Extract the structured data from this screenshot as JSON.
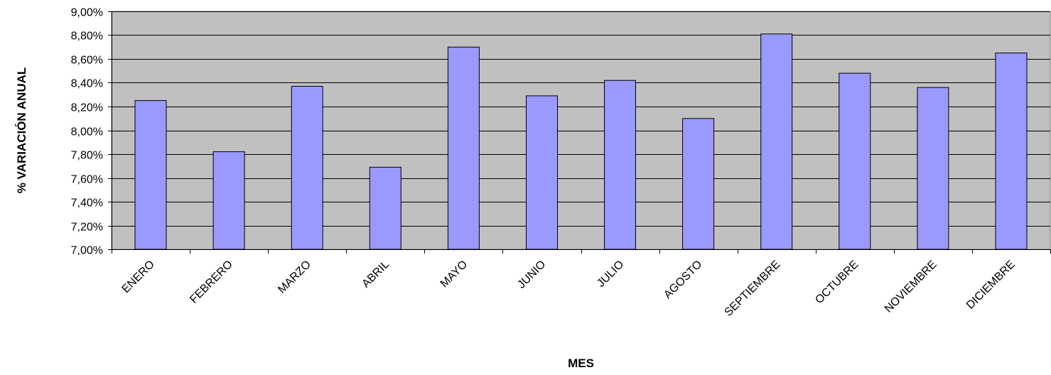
{
  "chart_data": {
    "type": "bar",
    "title": "",
    "xlabel": "MES",
    "ylabel": "% VARIACIÓN ANUAL",
    "categories": [
      "ENERO",
      "FEBRERO",
      "MARZO",
      "ABRIL",
      "MAYO",
      "JUNIO",
      "JULIO",
      "AGOSTO",
      "SEPTIEMBRE",
      "OCTUBRE",
      "NOVIEMBRE",
      "DICIEMBRE"
    ],
    "series": [
      {
        "values": [
          8.25,
          7.82,
          8.37,
          7.69,
          8.7,
          8.29,
          8.42,
          8.1,
          8.81,
          8.48,
          8.36,
          8.65
        ]
      }
    ],
    "ylim": [
      7.0,
      9.0
    ],
    "yticks": [
      7.0,
      7.2,
      7.4,
      7.6,
      7.8,
      8.0,
      8.2,
      8.4,
      8.6,
      8.8,
      9.0
    ],
    "ytick_labels": [
      "7,00%",
      "7,20%",
      "7,40%",
      "7,60%",
      "7,80%",
      "8,00%",
      "8,20%",
      "8,40%",
      "8,60%",
      "8,80%",
      "9,00%"
    ],
    "grid": true,
    "legend": "none",
    "colors": {
      "bar": "#9999ff",
      "plot_background": "#c0c0c0",
      "bar_border": "#000000",
      "gridline": "#000000"
    }
  }
}
